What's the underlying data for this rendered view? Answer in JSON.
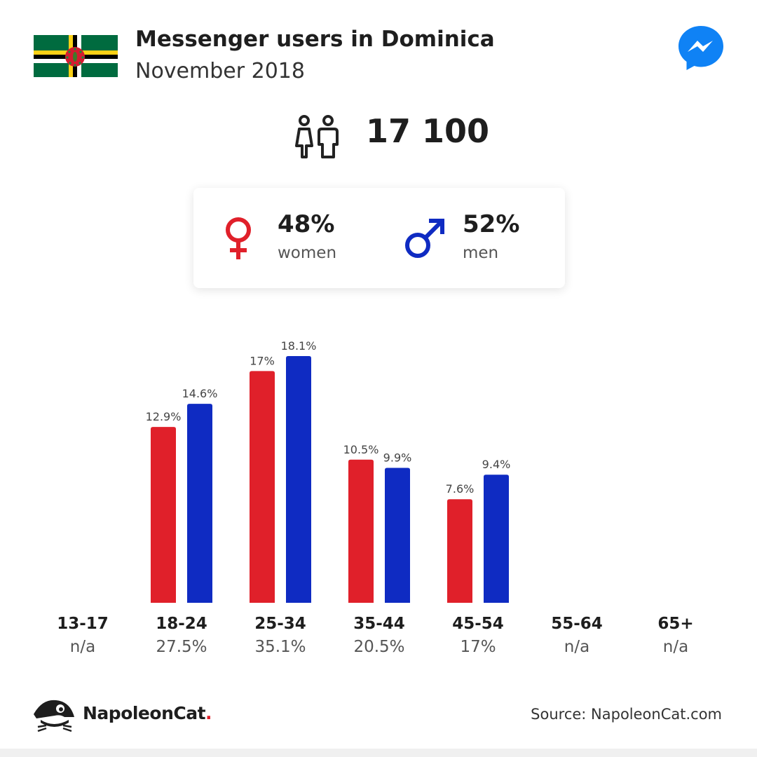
{
  "header": {
    "title": "Messenger users in Dominica",
    "subtitle": "November 2018",
    "flag_icon": "dominica-flag-icon",
    "app_icon": "messenger-logo-icon"
  },
  "total": {
    "icon": "people-icon",
    "value": "17 100"
  },
  "gender": {
    "women": {
      "pct": "48%",
      "label": "women",
      "icon": "female-symbol-icon",
      "color": "#e0202a"
    },
    "men": {
      "pct": "52%",
      "label": "men",
      "icon": "male-symbol-icon",
      "color": "#0f2bc2"
    }
  },
  "chart_data": {
    "type": "bar",
    "categories": [
      "13-17",
      "18-24",
      "25-34",
      "35-44",
      "45-54",
      "55-64",
      "65+"
    ],
    "category_totals": [
      "n/a",
      "27.5%",
      "35.1%",
      "20.5%",
      "17%",
      "n/a",
      "n/a"
    ],
    "series": [
      {
        "color": "#e0202a",
        "values": [
          null,
          12.9,
          17,
          10.5,
          7.6,
          null,
          null
        ],
        "labels": [
          "",
          "12.9%",
          "17%",
          "10.5%",
          "7.6%",
          "",
          ""
        ]
      },
      {
        "color": "#0f2bc2",
        "values": [
          null,
          14.6,
          18.1,
          9.9,
          9.4,
          null,
          null
        ],
        "labels": [
          "",
          "14.6%",
          "18.1%",
          "9.9%",
          "9.4%",
          "",
          ""
        ]
      }
    ],
    "ylim": [
      0,
      18.1
    ]
  },
  "footer": {
    "brand": "NapoleonCat",
    "brand_dot": ".",
    "brand_icon": "napoleoncat-logo-icon",
    "source": "Source: NapoleonCat.com"
  }
}
